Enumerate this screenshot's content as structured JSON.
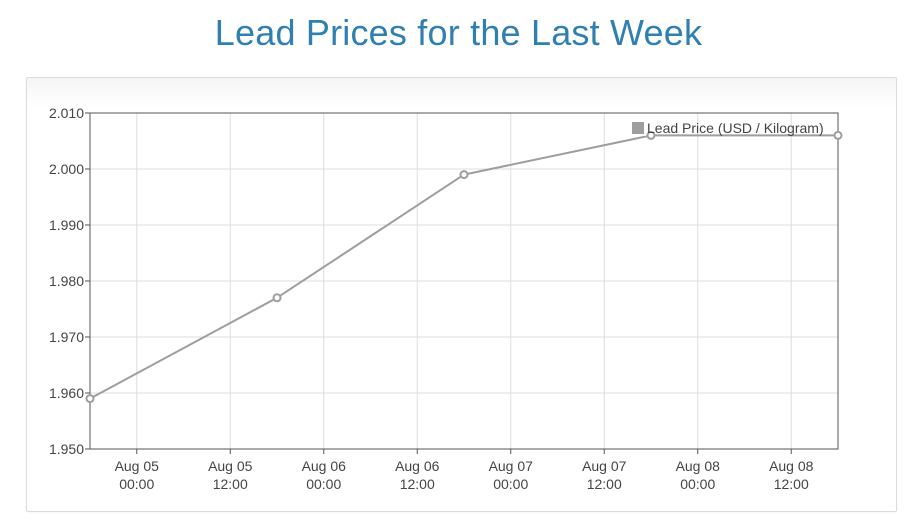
{
  "page": {
    "title": "Lead Prices for the Last Week"
  },
  "colors": {
    "title": "#2f7fb0",
    "series": "#9e9e9e",
    "grid": "#dddddd",
    "axis": "#555555"
  },
  "chart_data": {
    "type": "line",
    "title": "Lead Prices for the Last Week",
    "xlabel": "",
    "ylabel": "",
    "x_range": [
      "2025-08-04T18:00",
      "2025-08-08T18:00"
    ],
    "ylim": [
      1.95,
      2.01
    ],
    "y_ticks": [
      1.95,
      1.96,
      1.97,
      1.98,
      1.99,
      2.0,
      2.01
    ],
    "y_tick_labels": [
      "1.950",
      "1.960",
      "1.970",
      "1.980",
      "1.990",
      "2.000",
      "2.010"
    ],
    "x_ticks": [
      {
        "at": "2025-08-05T00:00",
        "line1": "Aug 05",
        "line2": "00:00"
      },
      {
        "at": "2025-08-05T12:00",
        "line1": "Aug 05",
        "line2": "12:00"
      },
      {
        "at": "2025-08-06T00:00",
        "line1": "Aug 06",
        "line2": "00:00"
      },
      {
        "at": "2025-08-06T12:00",
        "line1": "Aug 06",
        "line2": "12:00"
      },
      {
        "at": "2025-08-07T00:00",
        "line1": "Aug 07",
        "line2": "00:00"
      },
      {
        "at": "2025-08-07T12:00",
        "line1": "Aug 07",
        "line2": "12:00"
      },
      {
        "at": "2025-08-08T00:00",
        "line1": "Aug 08",
        "line2": "00:00"
      },
      {
        "at": "2025-08-08T12:00",
        "line1": "Aug 08",
        "line2": "12:00"
      }
    ],
    "grid": true,
    "legend": {
      "position": "top-right"
    },
    "series": [
      {
        "name": "Lead Price (USD / Kilogram)",
        "color": "#9e9e9e",
        "points": [
          {
            "x": "2025-08-04T18:00",
            "y": 1.959
          },
          {
            "x": "2025-08-05T18:00",
            "y": 1.977
          },
          {
            "x": "2025-08-06T18:00",
            "y": 1.999
          },
          {
            "x": "2025-08-07T18:00",
            "y": 2.006
          },
          {
            "x": "2025-08-08T18:00",
            "y": 2.006
          }
        ]
      }
    ]
  }
}
